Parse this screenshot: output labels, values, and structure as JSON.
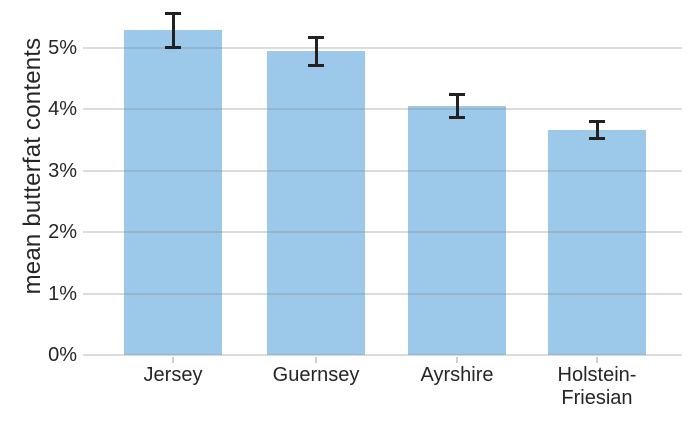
{
  "chart_data": {
    "type": "bar",
    "title": "",
    "xlabel": "",
    "ylabel": "mean butterfat contents",
    "categories": [
      "Jersey",
      "Guernsey",
      "Ayrshire",
      "Holstein-Friesian"
    ],
    "values": [
      5.29,
      4.95,
      4.06,
      3.67
    ],
    "error_bars": [
      0.28,
      0.23,
      0.19,
      0.14
    ],
    "value_unit": "%",
    "ytick_labels": [
      "0%",
      "1%",
      "2%",
      "3%",
      "4%",
      "5%"
    ],
    "ytick_values": [
      0,
      1,
      2,
      3,
      4,
      5
    ],
    "ylim": [
      0,
      5.78
    ],
    "grid": true,
    "legend_position": "none",
    "colors": {
      "bar": "#9CC9EA",
      "error_bar": "#212121",
      "gridline": "#DBDBDB",
      "axis_text": "#262626",
      "background": "#FFFFFF"
    }
  }
}
